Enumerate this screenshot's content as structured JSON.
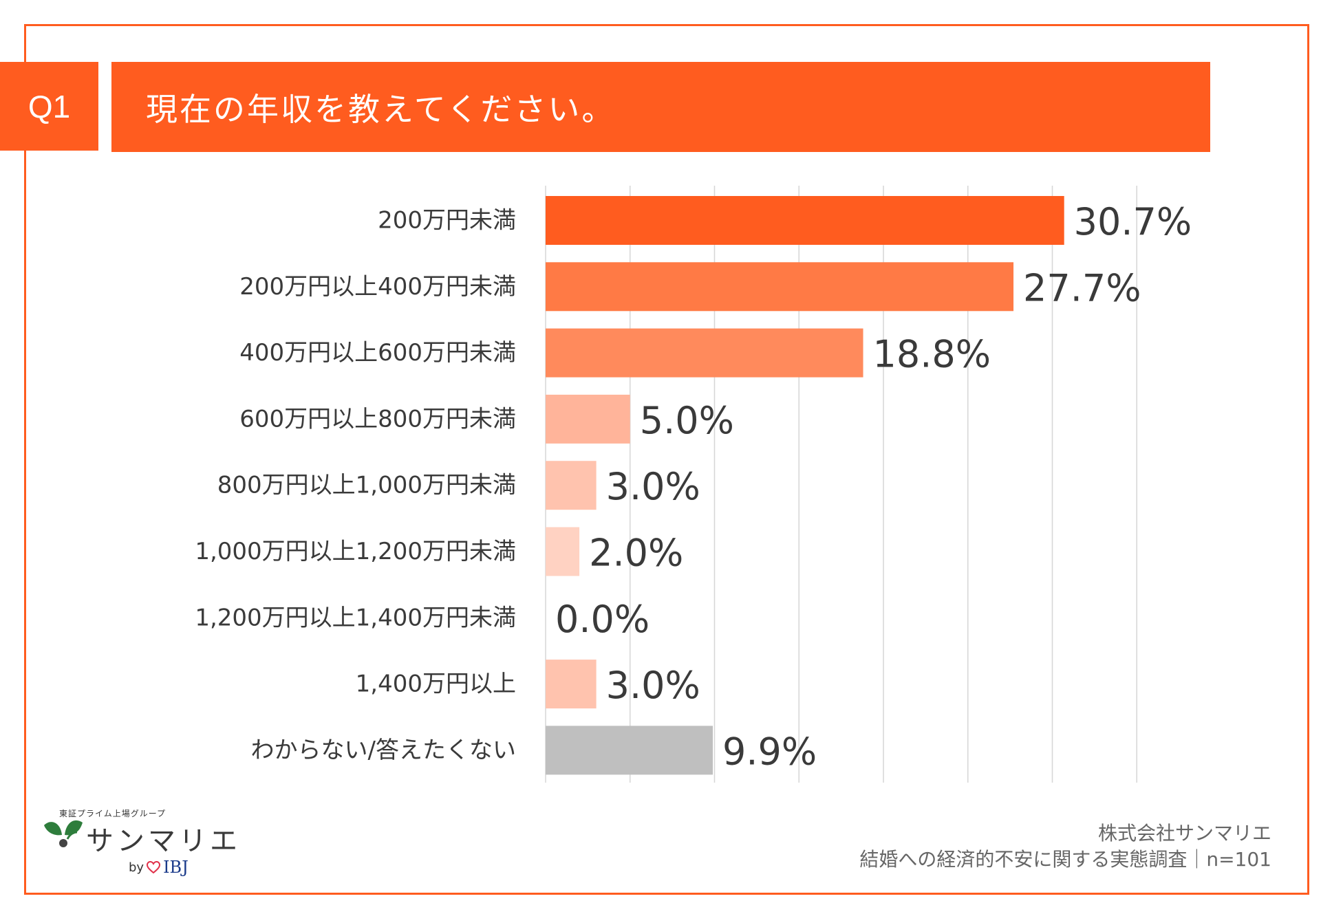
{
  "question": {
    "tag": "Q1",
    "text": "現在の年収を教えてください。"
  },
  "chart_data": {
    "type": "bar",
    "orientation": "horizontal",
    "title": "現在の年収を教えてください。",
    "categories": [
      "200万円未満",
      "200万円以上400万円未満",
      "400万円以上600万円未満",
      "600万円以上800万円未満",
      "800万円以上1,000万円未満",
      "1,000万円以上1,200万円未満",
      "1,200万円以上1,400万円未満",
      "1,400万円以上",
      "わからない/答えたくない"
    ],
    "values": [
      30.7,
      27.7,
      18.8,
      5.0,
      3.0,
      2.0,
      0.0,
      3.0,
      9.9
    ],
    "value_labels": [
      "30.7%",
      "27.7%",
      "18.8%",
      "5.0%",
      "3.0%",
      "2.0%",
      "0.0%",
      "3.0%",
      "9.9%"
    ],
    "bar_colors": [
      "#ff5c1f",
      "#ff7a45",
      "#ff8a5c",
      "#ffb49a",
      "#ffc3ae",
      "#ffd2c2",
      "#ffd2c2",
      "#ffc3ae",
      "#bfbfbf"
    ],
    "xlim": [
      0,
      35
    ],
    "grid": true
  },
  "logo": {
    "group_text": "東証プライム上場グループ",
    "brand": "サンマリエ",
    "by": "by",
    "partner": "IBJ"
  },
  "footer": {
    "company": "株式会社サンマリエ",
    "survey": "結婚への経済的不安に関する実態調査｜n=101"
  }
}
